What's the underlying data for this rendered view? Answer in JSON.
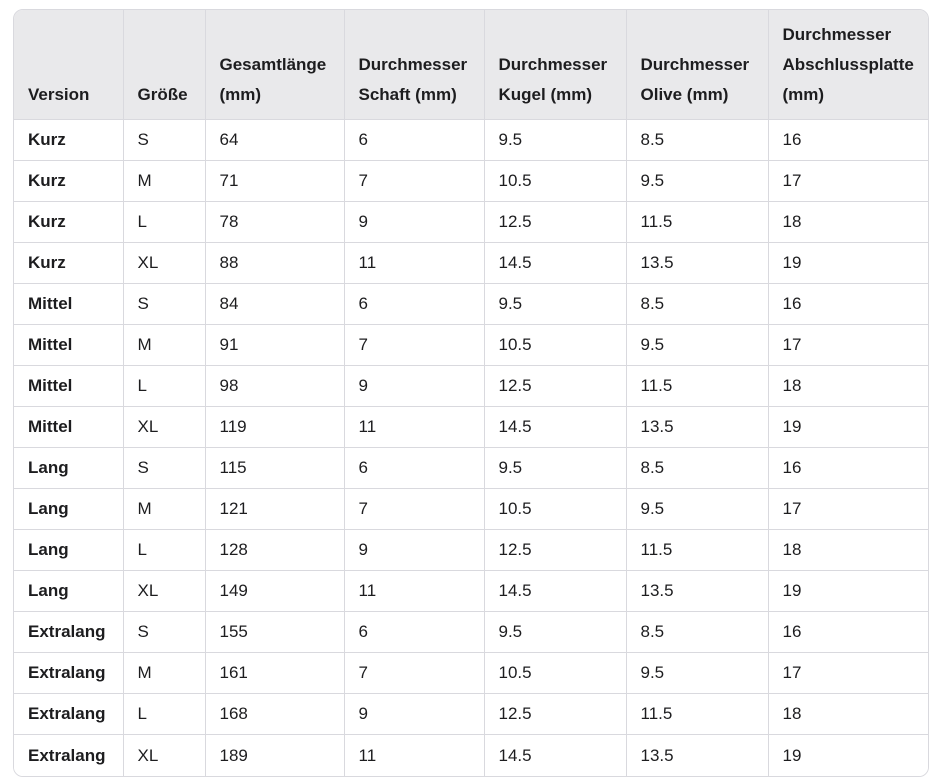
{
  "table": {
    "headers": [
      "Version",
      "Größe",
      "Gesamtlänge (mm)",
      "Durchmesser Schaft (mm)",
      "Durchmesser Kugel (mm)",
      "Durchmesser Olive (mm)",
      "Durchmesser Abschlussplatte (mm)"
    ],
    "rows": [
      [
        "Kurz",
        "S",
        "64",
        "6",
        "9.5",
        "8.5",
        "16"
      ],
      [
        "Kurz",
        "M",
        "71",
        "7",
        "10.5",
        "9.5",
        "17"
      ],
      [
        "Kurz",
        "L",
        "78",
        "9",
        "12.5",
        "11.5",
        "18"
      ],
      [
        "Kurz",
        "XL",
        "88",
        "11",
        "14.5",
        "13.5",
        "19"
      ],
      [
        "Mittel",
        "S",
        "84",
        "6",
        "9.5",
        "8.5",
        "16"
      ],
      [
        "Mittel",
        "M",
        "91",
        "7",
        "10.5",
        "9.5",
        "17"
      ],
      [
        "Mittel",
        "L",
        "98",
        "9",
        "12.5",
        "11.5",
        "18"
      ],
      [
        "Mittel",
        "XL",
        "119",
        "11",
        "14.5",
        "13.5",
        "19"
      ],
      [
        "Lang",
        "S",
        "115",
        "6",
        "9.5",
        "8.5",
        "16"
      ],
      [
        "Lang",
        "M",
        "121",
        "7",
        "10.5",
        "9.5",
        "17"
      ],
      [
        "Lang",
        "L",
        "128",
        "9",
        "12.5",
        "11.5",
        "18"
      ],
      [
        "Lang",
        "XL",
        "149",
        "11",
        "14.5",
        "13.5",
        "19"
      ],
      [
        "Extralang",
        "S",
        "155",
        "6",
        "9.5",
        "8.5",
        "16"
      ],
      [
        "Extralang",
        "M",
        "161",
        "7",
        "10.5",
        "9.5",
        "17"
      ],
      [
        "Extralang",
        "L",
        "168",
        "9",
        "12.5",
        "11.5",
        "18"
      ],
      [
        "Extralang",
        "XL",
        "189",
        "11",
        "14.5",
        "13.5",
        "19"
      ]
    ]
  },
  "colors": {
    "header_bg": "#e9e9eb",
    "border": "#d9d9de",
    "text": "#1d1d1f"
  }
}
